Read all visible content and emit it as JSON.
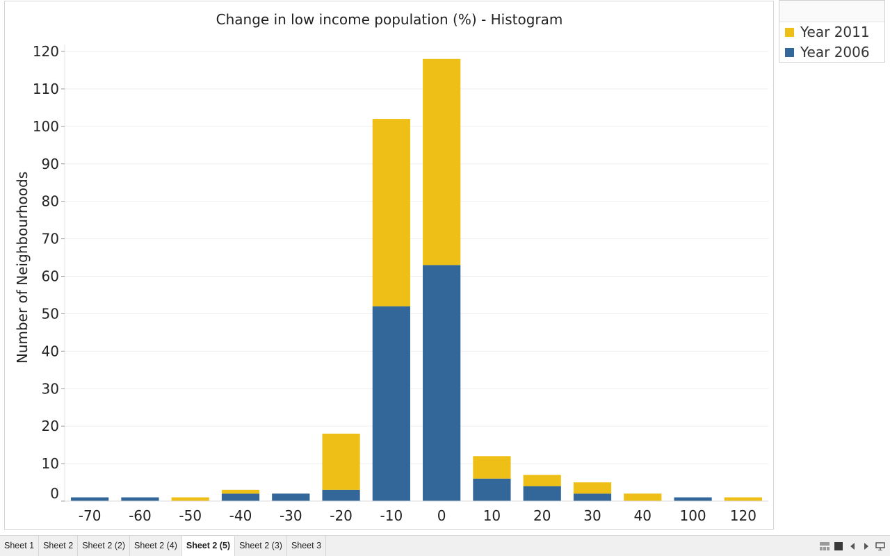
{
  "chart_data": {
    "type": "bar",
    "stacked": true,
    "title": "Change in low income population (%) - Histogram",
    "xlabel": "",
    "ylabel": "Number of Neighbourhoods",
    "categories": [
      "-70",
      "-60",
      "-50",
      "-40",
      "-30",
      "-20",
      "-10",
      "0",
      "10",
      "20",
      "30",
      "40",
      "100",
      "120"
    ],
    "series": [
      {
        "name": "Year 2006",
        "color": "#336699",
        "values": [
          1,
          1,
          0,
          2,
          2,
          3,
          52,
          63,
          6,
          4,
          2,
          0,
          1,
          0
        ]
      },
      {
        "name": "Year 2011",
        "color": "#EEBF16",
        "values": [
          0,
          0,
          1,
          1,
          0,
          15,
          50,
          55,
          6,
          3,
          3,
          2,
          0,
          1
        ]
      }
    ],
    "ylim": [
      0,
      120
    ],
    "yticks": [
      0,
      10,
      20,
      30,
      40,
      50,
      60,
      70,
      80,
      90,
      100,
      110,
      120
    ],
    "grid": true,
    "legend_position": "top-right"
  },
  "legend": {
    "items": [
      {
        "label": "Year 2011",
        "color": "#EEBF16"
      },
      {
        "label": "Year 2006",
        "color": "#336699"
      }
    ]
  },
  "tabs": [
    {
      "label": "Sheet 1",
      "active": false
    },
    {
      "label": "Sheet 2",
      "active": false
    },
    {
      "label": "Sheet 2 (2)",
      "active": false
    },
    {
      "label": "Sheet 2 (4)",
      "active": false
    },
    {
      "label": "Sheet 2 (5)",
      "active": true
    },
    {
      "label": "Sheet 2 (3)",
      "active": false
    },
    {
      "label": "Sheet 3",
      "active": false
    }
  ],
  "controls": [
    "sheet-sorter-icon",
    "filmstrip-icon",
    "prev-sheet-icon",
    "next-sheet-icon",
    "presentation-icon"
  ]
}
